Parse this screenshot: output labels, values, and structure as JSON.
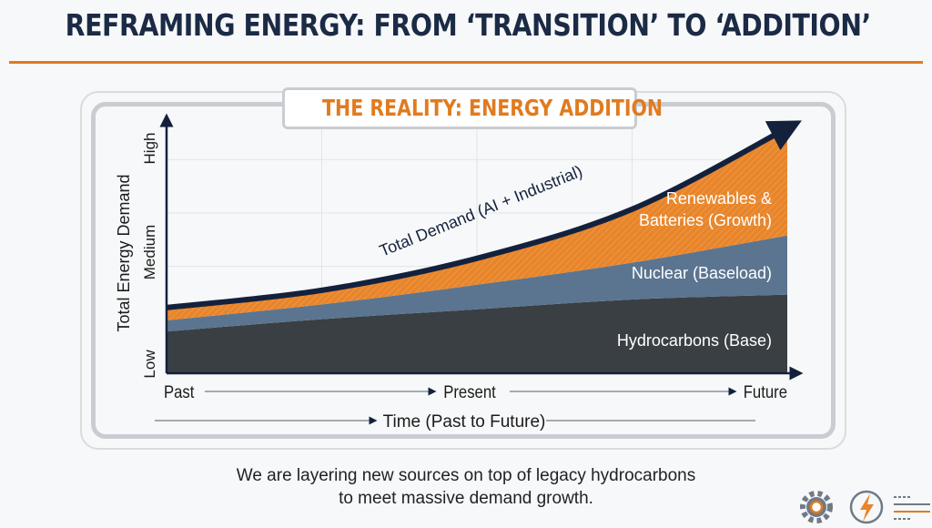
{
  "header": {
    "title": "REFRAMING ENERGY: FROM ‘TRANSITION’ TO ‘ADDITION’"
  },
  "panel": {
    "title": "THE REALITY: ENERGY ADDITION"
  },
  "caption": {
    "line1": "We are layering new sources on top of legacy hydrocarbons",
    "line2": "to meet massive demand growth."
  },
  "colors": {
    "hydrocarbons": "#3a3f44",
    "nuclear": "#5b7590",
    "renewables": "#e8852a",
    "demand": "#14213d",
    "accent": "#e07b1f"
  },
  "chart_data": {
    "type": "area",
    "stacked": true,
    "title": "THE REALITY: ENERGY ADDITION",
    "xlabel": "Time (Past to Future)",
    "ylabel": "Total Energy Demand",
    "x": [
      0,
      2.5,
      5,
      7.5,
      10
    ],
    "x_tick_labels": [
      "Past",
      "Present",
      "Future"
    ],
    "y_tick_labels": [
      "Low",
      "Medium",
      "High"
    ],
    "ylim": [
      0,
      10
    ],
    "grid": true,
    "series": [
      {
        "name": "Hydrocarbons (Base)",
        "values": [
          1.7,
          2.2,
          2.6,
          3.0,
          3.2
        ]
      },
      {
        "name": "Nuclear (Baseload)",
        "values": [
          0.45,
          0.6,
          1.0,
          1.5,
          2.4
        ]
      },
      {
        "name": "Renewables & Batteries (Growth)",
        "label_lines": [
          "Renewables &",
          "Batteries (Growth)"
        ],
        "values": [
          0.45,
          0.5,
          1.0,
          2.1,
          4.3
        ]
      }
    ],
    "total_line": {
      "name": "Total Demand (AI + Industrial)",
      "values": [
        2.6,
        3.3,
        4.6,
        6.6,
        9.9
      ]
    }
  }
}
